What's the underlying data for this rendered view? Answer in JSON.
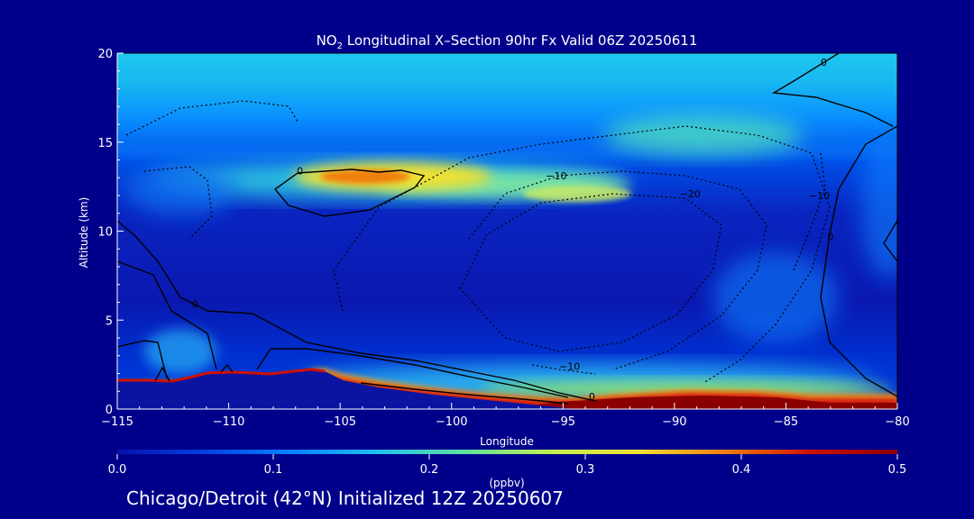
{
  "chart_data": {
    "type": "heatmap",
    "title_prefix": "NO",
    "title_sub": "2",
    "title_rest": " Longitudinal X–Section 90hr  Fx Valid 06Z 20250611",
    "xlabel": "Longitude",
    "ylabel": "Altitude (km)",
    "xlim": [
      -115,
      -80
    ],
    "ylim": [
      0,
      20
    ],
    "x_ticks": [
      {
        "value": -115,
        "label": "−115"
      },
      {
        "value": -110,
        "label": "−110"
      },
      {
        "value": -105,
        "label": "−105"
      },
      {
        "value": -100,
        "label": "−100"
      },
      {
        "value": -95,
        "label": "−95"
      },
      {
        "value": -90,
        "label": "−90"
      },
      {
        "value": -85,
        "label": "−85"
      },
      {
        "value": -80,
        "label": "−80"
      }
    ],
    "y_ticks": [
      {
        "value": 0,
        "label": "0"
      },
      {
        "value": 5,
        "label": "5"
      },
      {
        "value": 10,
        "label": "10"
      },
      {
        "value": 15,
        "label": "15"
      },
      {
        "value": 20,
        "label": "20"
      }
    ],
    "colorbar": {
      "label": "(ppbv)",
      "range": [
        0,
        0.5
      ],
      "ticks": [
        {
          "value": 0.0,
          "label": "0.0"
        },
        {
          "value": 0.1,
          "label": "0.1"
        },
        {
          "value": 0.2,
          "label": "0.2"
        },
        {
          "value": 0.3,
          "label": "0.3"
        },
        {
          "value": 0.4,
          "label": "0.4"
        },
        {
          "value": 0.5,
          "label": "0.5"
        }
      ],
      "colors": [
        "#0a10b0",
        "#0040e0",
        "#0a80ff",
        "#20c0f0",
        "#60e0a0",
        "#c0f050",
        "#f0e030",
        "#f08010",
        "#d01000",
        "#8b0000"
      ]
    },
    "contour_labels": [
      {
        "text": "0",
        "lon": -106.8,
        "alt": 13.2
      },
      {
        "text": "−10",
        "lon": -95.3,
        "alt": 12.9
      },
      {
        "text": "−20",
        "lon": -89.3,
        "alt": 11.9
      },
      {
        "text": "−10",
        "lon": -94.7,
        "alt": 2.2
      },
      {
        "text": "0",
        "lon": -93.7,
        "alt": 0.5
      },
      {
        "text": "0",
        "lon": -83.3,
        "alt": 19.3
      },
      {
        "text": "−10",
        "lon": -83.5,
        "alt": 11.8
      },
      {
        "text": "0",
        "lon": -83.0,
        "alt": 9.5
      },
      {
        "text": "0",
        "lon": -111.5,
        "alt": 5.7
      }
    ]
  },
  "caption": "Chicago/Detroit (42°N) Initialized 12Z 20250607",
  "colors": {
    "background": "#00008b",
    "foreground": "#ffffff",
    "terrain": "#0a14a0"
  }
}
